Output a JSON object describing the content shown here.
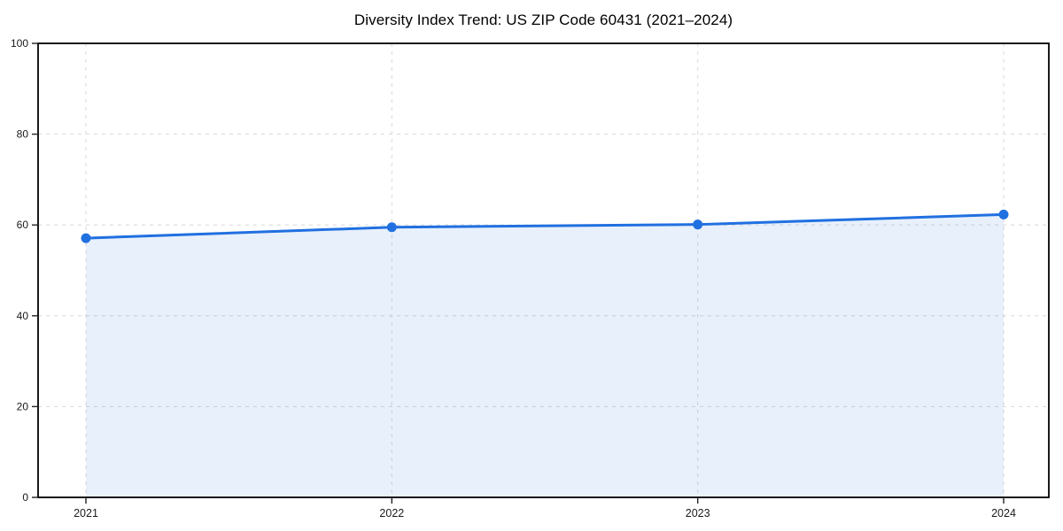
{
  "chart_data": {
    "type": "area",
    "title": "Diversity Index Trend: US ZIP Code 60431 (2021–2024)",
    "categories": [
      "2021",
      "2022",
      "2023",
      "2024"
    ],
    "values": [
      57.1,
      59.5,
      60.1,
      62.3
    ],
    "series_name": "Diversity Index",
    "xlabel": "",
    "ylabel": "",
    "ylim": [
      0,
      100
    ],
    "yticks": [
      0,
      20,
      40,
      60,
      80,
      100
    ],
    "grid": true,
    "grid_style": "dashed",
    "legend": "none",
    "colors": {
      "line": "#2070E0",
      "marker": "#2070E0",
      "fill": "rgba(32,112,224,0.10)",
      "grid": "#DCDCDC",
      "axis": "#000000",
      "tick": "#222222",
      "text": "#1A1A1A",
      "background": "#FFFFFF"
    }
  }
}
